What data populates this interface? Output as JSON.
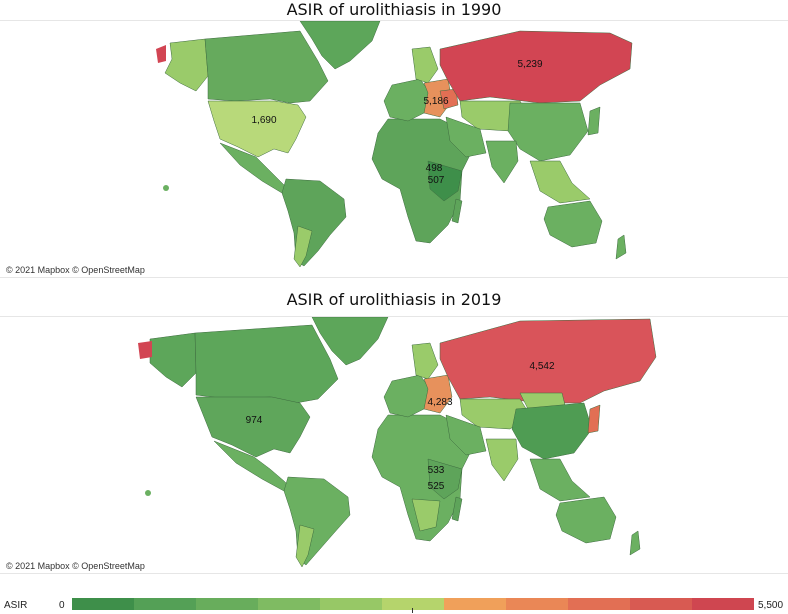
{
  "map_1990": {
    "title": "ASIR of urolithiasis in 1990",
    "attribution": "© 2021 Mapbox © OpenStreetMap",
    "labels": [
      {
        "region": "russia",
        "value": "5,239"
      },
      {
        "region": "eastern-europe",
        "value": "5,186"
      },
      {
        "region": "united-states",
        "value": "1,690"
      },
      {
        "region": "east-africa-north",
        "value": "498"
      },
      {
        "region": "east-africa-south",
        "value": "507"
      }
    ]
  },
  "map_2019": {
    "title": "ASIR of urolithiasis in 2019",
    "attribution": "© 2021 Mapbox © OpenStreetMap",
    "labels": [
      {
        "region": "russia",
        "value": "4,542"
      },
      {
        "region": "eastern-europe",
        "value": "4,283"
      },
      {
        "region": "united-states",
        "value": "974"
      },
      {
        "region": "east-africa-north",
        "value": "533"
      },
      {
        "region": "east-africa-south",
        "value": "525"
      }
    ]
  },
  "legend": {
    "title": "ASIR",
    "min": "0",
    "max": "5,500",
    "colors": [
      "#3e8f4a",
      "#54a056",
      "#68ad5c",
      "#7fbb62",
      "#97c866",
      "#b5d46c",
      "#f0a05a",
      "#ea8756",
      "#e26f54",
      "#d85a52",
      "#cf4650"
    ]
  },
  "colors": {
    "russia_1990": "#d24553",
    "russia_2019": "#d9545a",
    "eastern_europe": "#e7915c",
    "us_1990": "#b8d97a",
    "us_2019": "#5fa65b",
    "canada_1990": "#66aa5d",
    "default_green": "#6bb061",
    "dark_green": "#4f9c53",
    "light_green": "#9bcb6c"
  }
}
